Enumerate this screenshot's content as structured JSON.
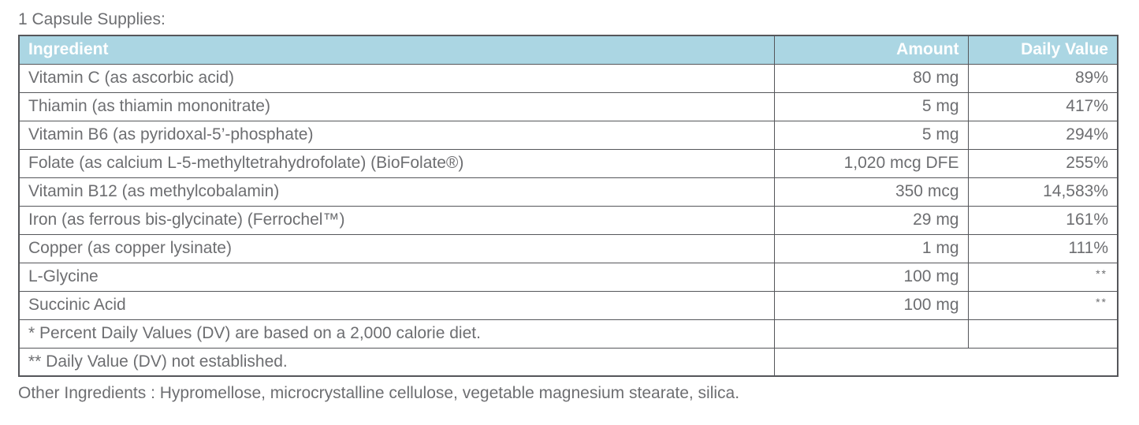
{
  "page": {
    "title": "1 Capsule Supplies:",
    "other_ingredients": "Other Ingredients : Hypromellose, microcrystalline cellulose, vegetable magnesium stearate, silica."
  },
  "table": {
    "headers": [
      "Ingredient",
      "Amount",
      "Daily Value"
    ],
    "rows": [
      {
        "ingredient": "Vitamin C (as ascorbic acid)",
        "amount": "80 mg",
        "daily_value": "89%"
      },
      {
        "ingredient": "Thiamin (as thiamin mononitrate)",
        "amount": "5 mg",
        "daily_value": "417%"
      },
      {
        "ingredient": "Vitamin B6 (as pyridoxal-5’-phosphate)",
        "amount": "5 mg",
        "daily_value": "294%"
      },
      {
        "ingredient": "Folate (as calcium L-5-methyltetrahydrofolate) (BioFolate®)",
        "amount": "1,020 mcg DFE",
        "daily_value": "255%"
      },
      {
        "ingredient": "Vitamin B12 (as methylcobalamin)",
        "amount": "350 mcg",
        "daily_value": "14,583%"
      },
      {
        "ingredient": "Iron (as ferrous bis-glycinate) (Ferrochel™)",
        "amount": "29 mg",
        "daily_value": "161%"
      },
      {
        "ingredient": "Copper (as copper lysinate)",
        "amount": "1 mg",
        "daily_value": "111%"
      },
      {
        "ingredient": "L-Glycine",
        "amount": "100 mg",
        "daily_value": "**"
      },
      {
        "ingredient": "Succinic Acid",
        "amount": "100 mg",
        "daily_value": "**"
      }
    ],
    "footnotes": [
      "* Percent Daily Values (DV) are based on a 2,000 calorie diet.",
      "** Daily Value (DV) not established."
    ]
  },
  "colors": {
    "header_bg": "#abd6e3",
    "header_text": "#ffffff",
    "body_text": "#6d6e71",
    "border": "#55565a"
  }
}
